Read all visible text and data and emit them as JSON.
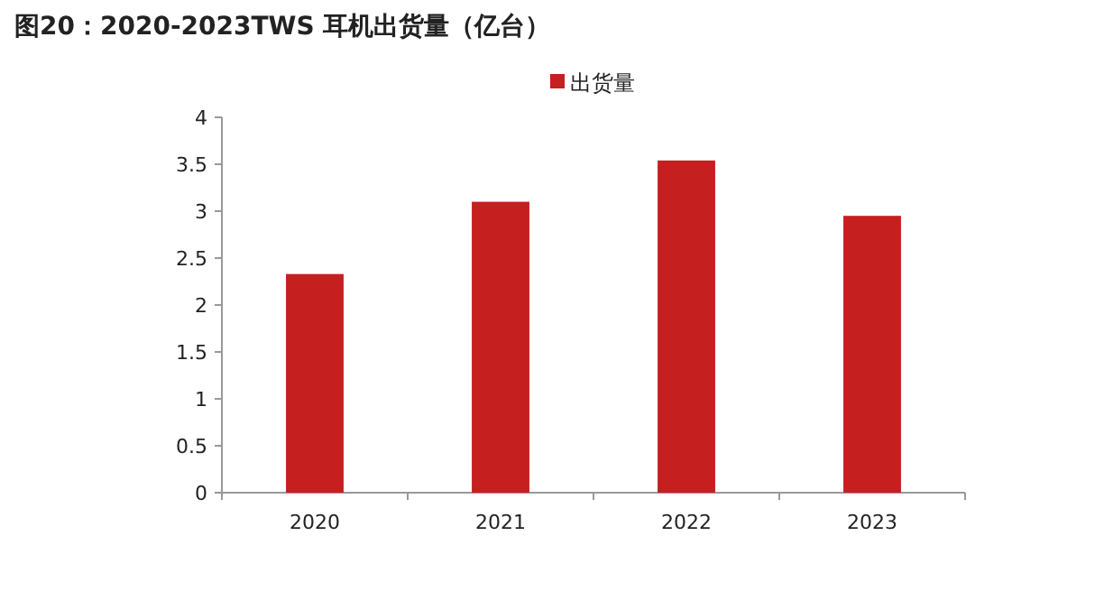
{
  "chart_data": {
    "type": "bar",
    "title": "图20：2020-2023TWS 耳机出货量（亿台）",
    "categories": [
      "2020",
      "2021",
      "2022",
      "2023"
    ],
    "series": [
      {
        "name": "出货量",
        "color": "#c61f20",
        "values": [
          2.33,
          3.1,
          3.54,
          2.95
        ]
      }
    ],
    "ylim": [
      0,
      4
    ],
    "yticks": [
      0,
      0.5,
      1,
      1.5,
      2,
      2.5,
      3,
      3.5,
      4
    ],
    "legend": "top",
    "grid": false
  }
}
